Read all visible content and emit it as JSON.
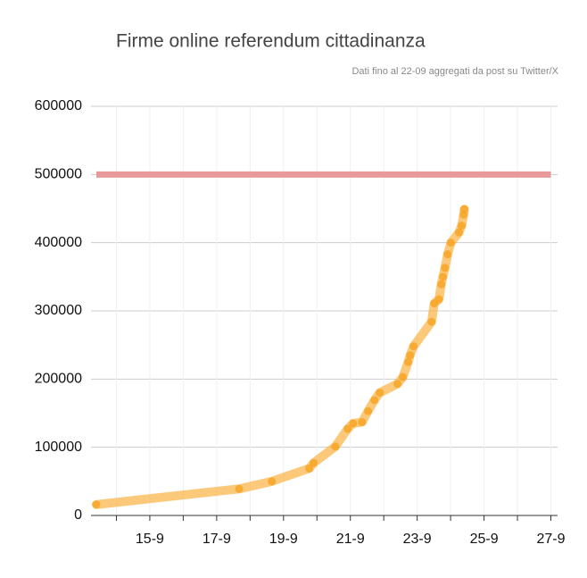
{
  "chart_data": {
    "type": "line",
    "title": "Firme online referendum cittadinanza",
    "subtitle": "Dati fino al 22-09 aggregati da post su Twitter/X",
    "x": [
      13.4,
      17.67,
      18.65,
      19.77,
      19.9,
      20.55,
      20.92,
      21.08,
      21.35,
      21.53,
      21.72,
      21.88,
      22.41,
      22.57,
      22.73,
      22.79,
      22.89,
      23.43,
      23.51,
      23.65,
      23.72,
      23.77,
      23.83,
      23.91,
      24.01,
      24.25,
      24.33,
      24.39,
      24.41
    ],
    "series": [
      {
        "color": "#fbb040",
        "values": [
          16000,
          39000,
          50000,
          69000,
          77000,
          101000,
          127000,
          135000,
          137000,
          153000,
          169000,
          180000,
          193000,
          203000,
          225000,
          235000,
          248000,
          284000,
          311000,
          317000,
          339000,
          350000,
          363000,
          383000,
          400000,
          415000,
          425000,
          441000,
          449000
        ]
      }
    ],
    "threshold": {
      "value": 500000,
      "color": "#e89a9a"
    },
    "xlim": [
      13.24,
      27.2
    ],
    "xticks": [
      {
        "value": 15,
        "label": "15-9"
      },
      {
        "value": 17,
        "label": "17-9"
      },
      {
        "value": 19,
        "label": "19-9"
      },
      {
        "value": 21,
        "label": "21-9"
      },
      {
        "value": 23,
        "label": "23-9"
      },
      {
        "value": 25,
        "label": "25-9"
      },
      {
        "value": 27,
        "label": "27-9"
      }
    ],
    "minor_xticks": [
      14,
      16,
      18,
      20,
      22,
      24,
      26
    ],
    "ylim": [
      0,
      600000
    ],
    "yticks": [
      0,
      100000,
      200000,
      300000,
      400000,
      500000,
      600000
    ],
    "grid": true
  }
}
